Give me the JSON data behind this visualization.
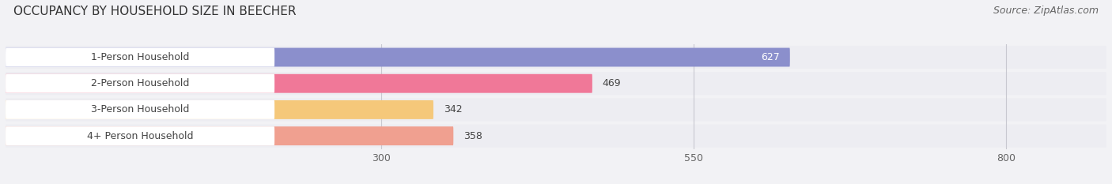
{
  "title": "OCCUPANCY BY HOUSEHOLD SIZE IN BEECHER",
  "source": "Source: ZipAtlas.com",
  "categories": [
    "1-Person Household",
    "2-Person Household",
    "3-Person Household",
    "4+ Person Household"
  ],
  "values": [
    627,
    469,
    342,
    358
  ],
  "bar_colors": [
    "#8b8fcc",
    "#f07898",
    "#f5c87a",
    "#f0a090"
  ],
  "label_bg_color": "#ffffff",
  "bar_bg_color": "#e8e8ec",
  "row_bg_color": "#ededf2",
  "x_ticks": [
    300,
    550,
    800
  ],
  "xlim_max": 880,
  "background_color": "#f2f2f5",
  "title_fontsize": 11,
  "source_fontsize": 9,
  "tick_fontsize": 9,
  "bar_label_fontsize": 9,
  "category_fontsize": 9
}
